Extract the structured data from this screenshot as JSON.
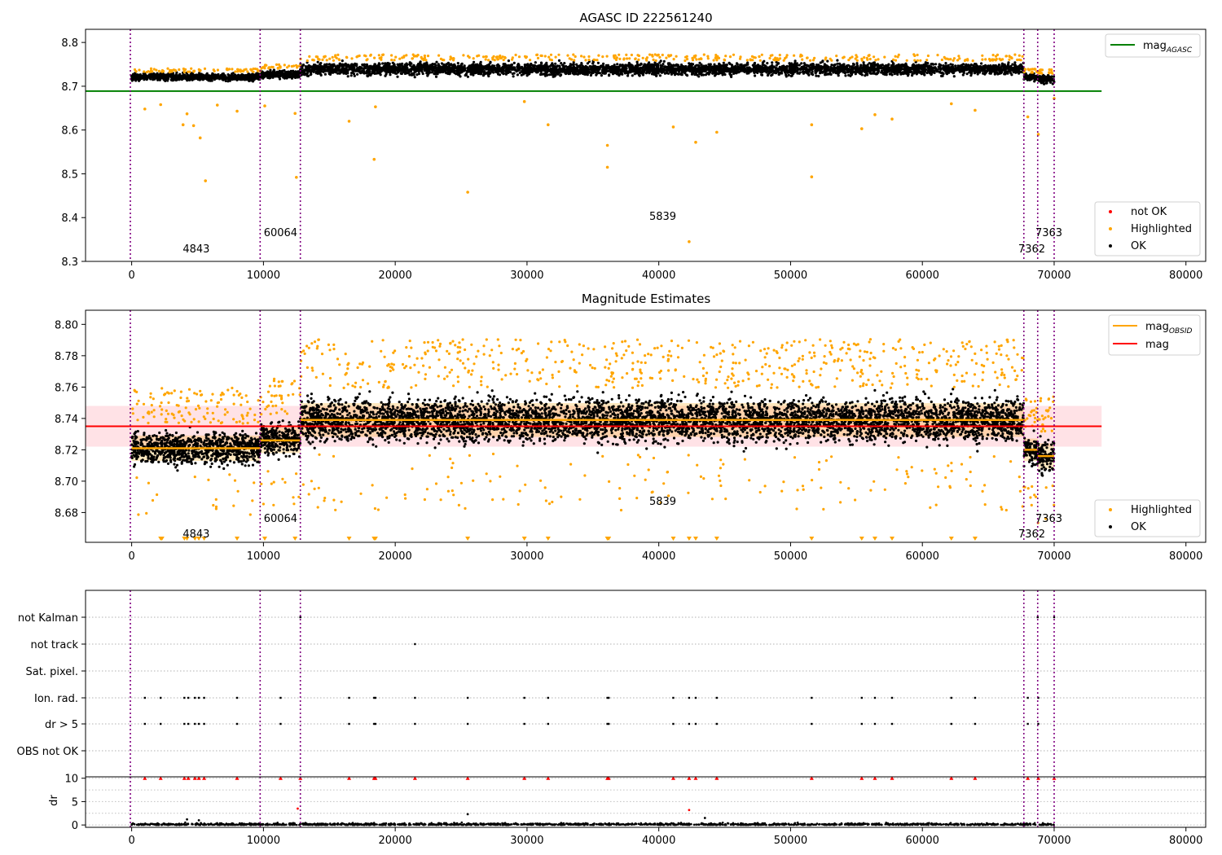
{
  "chart_data": [
    {
      "type": "scatter",
      "title": "AGASC ID 222561240",
      "xlabel": "",
      "ylabel": "",
      "xlim": [
        -3500,
        81500
      ],
      "ylim": [
        8.3,
        8.83
      ],
      "xticks": [
        0,
        10000,
        20000,
        30000,
        40000,
        50000,
        60000,
        70000,
        80000
      ],
      "yticks": [
        8.3,
        8.4,
        8.5,
        8.6,
        8.7,
        8.8
      ],
      "grid": false,
      "legend_upper": {
        "placement": "top-right",
        "entries": [
          {
            "label": "mag",
            "subscript": "AGASC",
            "color": "#008000"
          }
        ]
      },
      "legend_lower": {
        "placement": "bottom-right",
        "entries": [
          {
            "label": "not OK",
            "color": "#ff0000"
          },
          {
            "label": "Highlighted",
            "color": "#ffa500"
          },
          {
            "label": "OK",
            "color": "#000000"
          }
        ]
      },
      "hline": {
        "name": "mag AGASC",
        "y": 8.689,
        "x": [
          -3500,
          73600
        ],
        "color": "#008000"
      },
      "obsid_boundaries": [
        -100,
        9750,
        12800,
        67700,
        68750,
        70000
      ],
      "obsid_labels": [
        {
          "text": "4843",
          "x": 4900,
          "y": 8.32
        },
        {
          "text": "60064",
          "x": 11300,
          "y": 8.358
        },
        {
          "text": "5839",
          "x": 40300,
          "y": 8.395
        },
        {
          "text": "7362",
          "x": 68300,
          "y": 8.32
        },
        {
          "text": "7363",
          "x": 69600,
          "y": 8.358
        }
      ],
      "clusters": [
        {
          "x": [
            0,
            9750
          ],
          "center": 8.721,
          "spread": 0.007
        },
        {
          "x": [
            9750,
            12800
          ],
          "center": 8.727,
          "spread": 0.008
        },
        {
          "x": [
            12800,
            67700
          ],
          "center": 8.739,
          "spread": 0.012
        },
        {
          "x": [
            67700,
            68750
          ],
          "center": 8.72,
          "spread": 0.007
        },
        {
          "x": [
            68750,
            70000
          ],
          "center": 8.716,
          "spread": 0.008
        }
      ],
      "highlighted_outliers": [
        [
          1000,
          8.648
        ],
        [
          2200,
          8.658
        ],
        [
          3900,
          8.612
        ],
        [
          4200,
          8.637
        ],
        [
          4700,
          8.61
        ],
        [
          5200,
          8.582
        ],
        [
          5600,
          8.484
        ],
        [
          6500,
          8.657
        ],
        [
          8000,
          8.643
        ],
        [
          10100,
          8.655
        ],
        [
          12400,
          8.638
        ],
        [
          12500,
          8.492
        ],
        [
          16500,
          8.62
        ],
        [
          18400,
          8.533
        ],
        [
          18500,
          8.653
        ],
        [
          25500,
          8.458
        ],
        [
          29800,
          8.665
        ],
        [
          31600,
          8.612
        ],
        [
          36100,
          8.565
        ],
        [
          36100,
          8.515
        ],
        [
          41100,
          8.607
        ],
        [
          42300,
          8.345
        ],
        [
          42800,
          8.572
        ],
        [
          44400,
          8.595
        ],
        [
          51600,
          8.612
        ],
        [
          51600,
          8.493
        ],
        [
          55400,
          8.603
        ],
        [
          56400,
          8.635
        ],
        [
          57700,
          8.625
        ],
        [
          62200,
          8.66
        ],
        [
          64000,
          8.645
        ],
        [
          68000,
          8.63
        ],
        [
          68800,
          8.59
        ],
        [
          70000,
          8.672
        ]
      ]
    },
    {
      "type": "scatter",
      "title": "Magnitude Estimates",
      "xlabel": "",
      "ylabel": "",
      "xlim": [
        -3500,
        81500
      ],
      "ylim": [
        8.661,
        8.809
      ],
      "xticks": [
        0,
        10000,
        20000,
        30000,
        40000,
        50000,
        60000,
        70000,
        80000
      ],
      "yticks": [
        8.68,
        8.7,
        8.72,
        8.74,
        8.76,
        8.78,
        8.8
      ],
      "grid": false,
      "legend_upper": {
        "placement": "top-right",
        "entries": [
          {
            "label": "mag",
            "subscript": "OBSID",
            "color": "#ffa500"
          },
          {
            "label": "mag",
            "color": "#ff0000"
          }
        ]
      },
      "legend_lower": {
        "placement": "bottom-right",
        "entries": [
          {
            "label": "Highlighted",
            "color": "#ffa500"
          },
          {
            "label": "OK",
            "color": "#000000"
          }
        ]
      },
      "mag_line": {
        "name": "mag",
        "y": 8.735,
        "band": [
          8.722,
          8.748
        ],
        "x": [
          -3500,
          73600
        ],
        "color": "#ff0000"
      },
      "mag_obsid": [
        {
          "x": [
            0,
            9750
          ],
          "y": 8.721
        },
        {
          "x": [
            9750,
            12800
          ],
          "y": 8.726
        },
        {
          "x": [
            12800,
            67700
          ],
          "y": 8.739
        },
        {
          "x": [
            67700,
            68750
          ],
          "y": 8.72
        },
        {
          "x": [
            68750,
            70000
          ],
          "y": 8.716
        }
      ],
      "obsid_boundaries": [
        -100,
        9750,
        12800,
        67700,
        68750,
        70000
      ],
      "obsid_labels": [
        {
          "text": "4843",
          "x": 4900,
          "y": 8.664
        },
        {
          "text": "60064",
          "x": 11300,
          "y": 8.674
        },
        {
          "text": "5839",
          "x": 40300,
          "y": 8.685
        },
        {
          "text": "7362",
          "x": 68300,
          "y": 8.664
        },
        {
          "text": "7363",
          "x": 69600,
          "y": 8.674
        }
      ],
      "clusters": [
        {
          "x": [
            0,
            9750
          ],
          "center": 8.721,
          "spread": 0.009
        },
        {
          "x": [
            9750,
            12800
          ],
          "center": 8.727,
          "spread": 0.009
        },
        {
          "x": [
            12800,
            67700
          ],
          "center": 8.739,
          "spread": 0.012
        },
        {
          "x": [
            67700,
            68750
          ],
          "center": 8.72,
          "spread": 0.008
        },
        {
          "x": [
            68750,
            70000
          ],
          "center": 8.716,
          "spread": 0.009
        }
      ],
      "clipped_markers_x": [
        2200,
        2300,
        4000,
        4200,
        4800,
        5100,
        5500,
        8000,
        10100,
        12400,
        16500,
        18400,
        18500,
        25500,
        29800,
        31600,
        36100,
        36200,
        41100,
        42300,
        42800,
        44400,
        51600,
        55400,
        56400,
        57700,
        62200,
        64000
      ]
    },
    {
      "type": "scatter",
      "title": "",
      "xlabel": "",
      "ylabel": "",
      "xlim": [
        -3500,
        81500
      ],
      "categories": [
        "not Kalman",
        "not track",
        "Sat. pixel.",
        "Ion. rad.",
        "dr > 5",
        "OBS not OK"
      ],
      "flag_points": [
        {
          "category": "not track",
          "x": [
            21500
          ]
        },
        {
          "category": "not Kalman",
          "x": [
            12800,
            68750,
            70000
          ]
        },
        {
          "category": "Ion. rad.",
          "x": [
            1000,
            2200,
            4000,
            4300,
            4800,
            5100,
            5500,
            8000,
            11300,
            16500,
            18400,
            18500,
            21500,
            25500,
            29800,
            31600,
            36100,
            36200,
            41100,
            42300,
            42800,
            44400,
            51600,
            55400,
            56400,
            57700,
            62200,
            64000,
            68000,
            68800
          ]
        },
        {
          "category": "dr > 5",
          "x": [
            1000,
            2200,
            4000,
            4300,
            4800,
            5100,
            5500,
            8000,
            11300,
            16500,
            18400,
            18500,
            21500,
            25500,
            29800,
            31600,
            36100,
            36200,
            41100,
            42300,
            42800,
            44400,
            51600,
            55400,
            56400,
            57700,
            62200,
            64000,
            68000,
            68800
          ]
        }
      ],
      "obsid_boundaries": [
        -100,
        9750,
        12800,
        67700,
        68750,
        70000
      ]
    },
    {
      "type": "scatter",
      "title": "",
      "xlabel": "",
      "ylabel": "dr",
      "xlim": [
        -3500,
        81500
      ],
      "ylim": [
        -0.5,
        10.3
      ],
      "xticks": [
        0,
        10000,
        20000,
        30000,
        40000,
        50000,
        60000,
        70000,
        80000
      ],
      "yticks": [
        0,
        5,
        10
      ],
      "grid": true,
      "capped_value": 10,
      "capped_points_x": [
        1000,
        2200,
        4000,
        4300,
        4800,
        5100,
        5500,
        8000,
        11300,
        12800,
        16500,
        18400,
        18500,
        21500,
        25500,
        29800,
        31600,
        36100,
        36200,
        41100,
        42300,
        42800,
        44400,
        51600,
        55400,
        56400,
        57700,
        62200,
        64000,
        68000,
        68800,
        70000
      ],
      "other_points": [
        [
          12600,
          3.5
        ],
        [
          25500,
          2.3
        ],
        [
          4200,
          1.2
        ],
        [
          5100,
          1.0
        ],
        [
          42300,
          3.2
        ],
        [
          43500,
          1.5
        ]
      ],
      "obsid_boundaries": [
        -100,
        9750,
        12800,
        67700,
        68750,
        70000
      ]
    }
  ]
}
